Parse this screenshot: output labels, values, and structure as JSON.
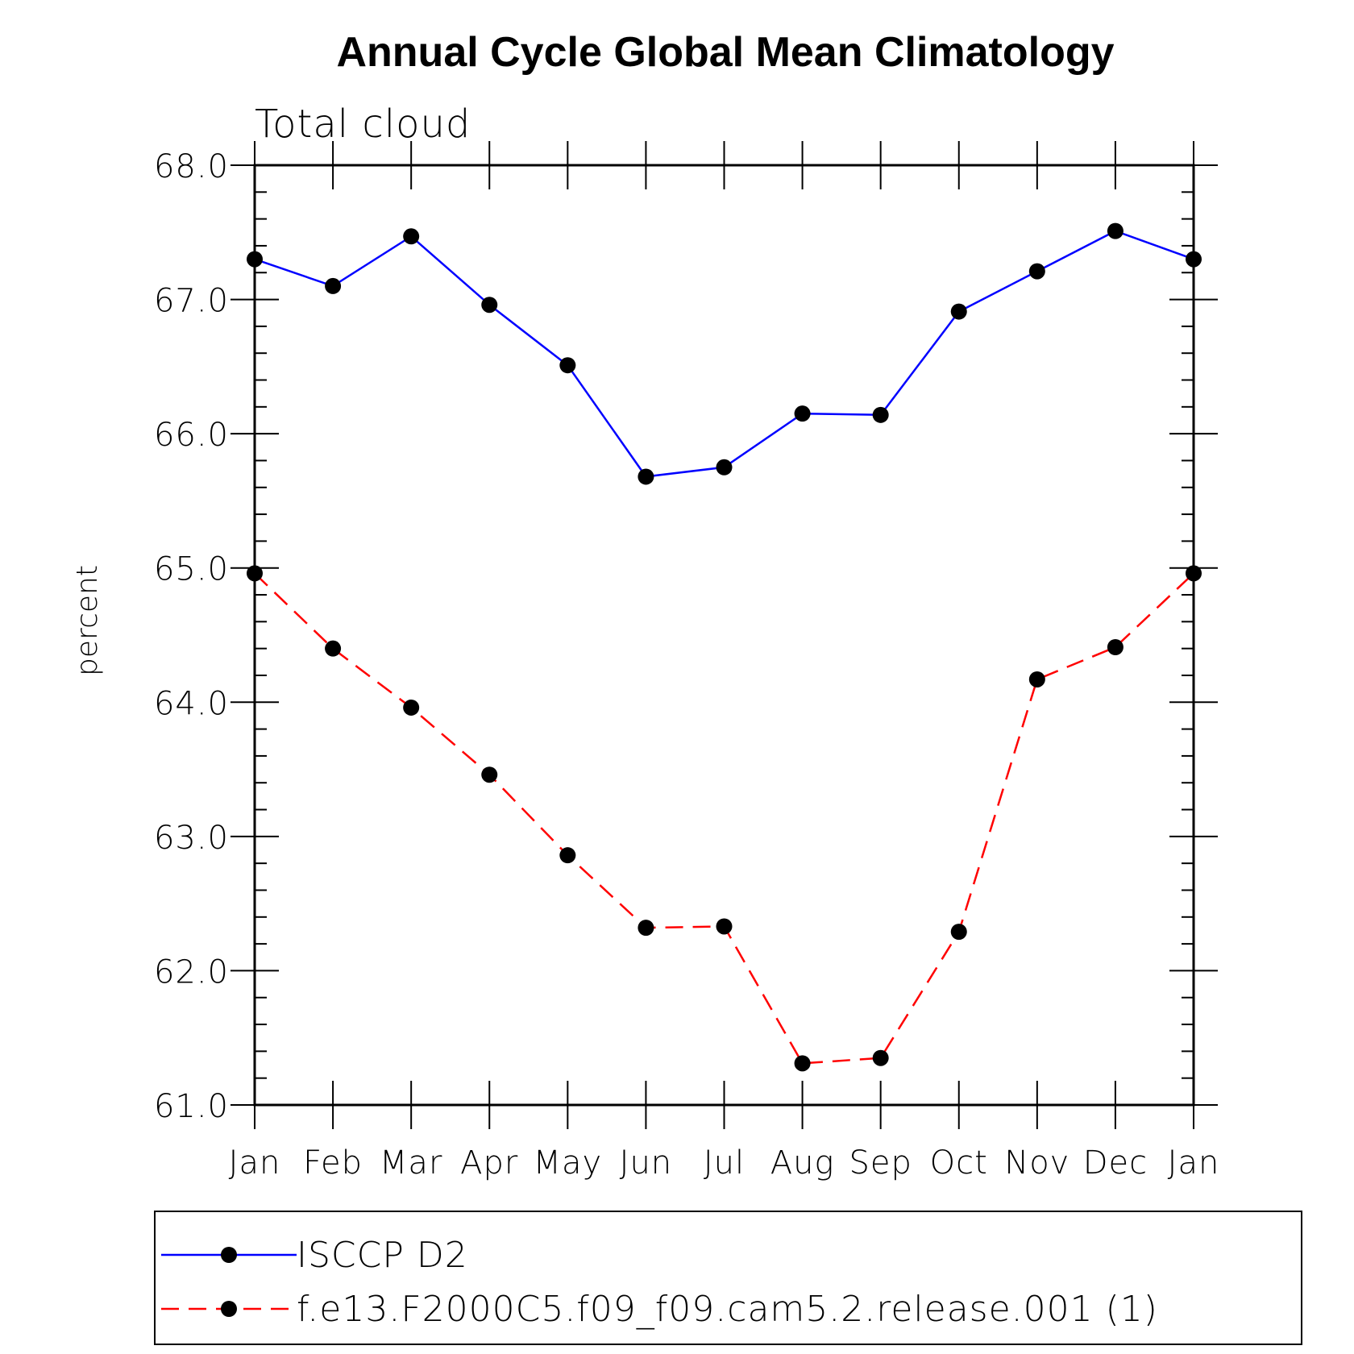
{
  "chart_data": {
    "type": "line",
    "title": "Annual Cycle Global Mean Climatology",
    "subtitle": "Total cloud",
    "xlabel": "",
    "ylabel": "percent",
    "categories": [
      "Jan",
      "Feb",
      "Mar",
      "Apr",
      "May",
      "Jun",
      "Jul",
      "Aug",
      "Sep",
      "Oct",
      "Nov",
      "Dec",
      "Jan"
    ],
    "ylim": [
      61.0,
      68.0
    ],
    "yticks": [
      "61.0",
      "62.0",
      "63.0",
      "64.0",
      "65.0",
      "66.0",
      "67.0",
      "68.0"
    ],
    "grid": false,
    "legend_position": "bottom",
    "series": [
      {
        "name": "ISCCP D2",
        "color": "#0000ff",
        "dash": "solid",
        "values": [
          67.3,
          67.1,
          67.47,
          66.96,
          66.51,
          65.68,
          65.75,
          66.15,
          66.14,
          66.91,
          67.21,
          67.51,
          67.3
        ]
      },
      {
        "name": "f.e13.F2000C5.f09_f09.cam5.2.release.001 (1)",
        "color": "#ff0000",
        "dash": "dashed",
        "values": [
          64.96,
          64.4,
          63.96,
          63.46,
          62.86,
          62.32,
          62.33,
          61.31,
          61.35,
          62.29,
          64.17,
          64.41,
          64.96
        ]
      }
    ]
  }
}
